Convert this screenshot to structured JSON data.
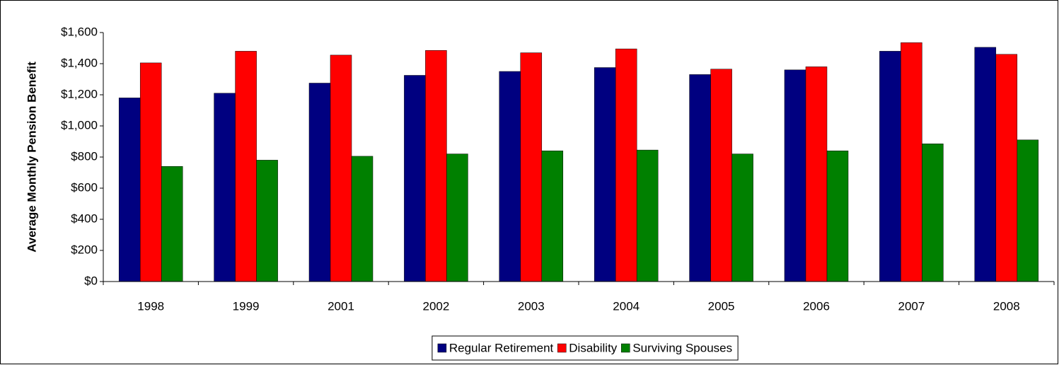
{
  "chart_data": {
    "type": "bar",
    "y_axis_label": "Average Monthly Pension Benefit",
    "categories": [
      "1998",
      "1999",
      "2001",
      "2002",
      "2003",
      "2004",
      "2005",
      "2006",
      "2007",
      "2008"
    ],
    "series": [
      {
        "name": "Regular Retirement",
        "color": "#000080",
        "values": [
          1180,
          1210,
          1275,
          1325,
          1350,
          1375,
          1330,
          1360,
          1480,
          1505
        ]
      },
      {
        "name": "Disability",
        "color": "#ff0000",
        "values": [
          1405,
          1480,
          1455,
          1485,
          1470,
          1495,
          1365,
          1380,
          1535,
          1460
        ]
      },
      {
        "name": "Surviving Spouses",
        "color": "#008000",
        "values": [
          740,
          780,
          805,
          820,
          840,
          845,
          820,
          840,
          885,
          910
        ]
      }
    ],
    "ylim": [
      0,
      1600
    ],
    "yticks": [
      {
        "value": 0,
        "label": "$0"
      },
      {
        "value": 200,
        "label": "$200"
      },
      {
        "value": 400,
        "label": "$400"
      },
      {
        "value": 600,
        "label": "$600"
      },
      {
        "value": 800,
        "label": "$800"
      },
      {
        "value": 1000,
        "label": "$1,000"
      },
      {
        "value": 1200,
        "label": "$1,200"
      },
      {
        "value": 1400,
        "label": "$1,400"
      },
      {
        "value": 1600,
        "label": "$1,600"
      }
    ],
    "grid": false,
    "legend": "bottom"
  }
}
